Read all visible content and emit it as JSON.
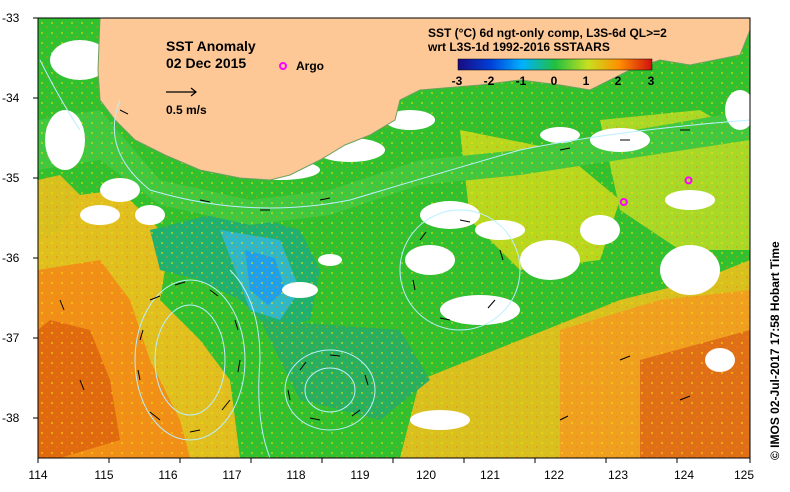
{
  "title": {
    "line1": "SST Anomaly",
    "line2": "02 Dec 2015"
  },
  "vector_scale_label": "0.5 m/s",
  "argo_label": "Argo",
  "colorbar": {
    "title_line1": "SST (°C) 6d ngt-only comp, L3S-6d QL>=2",
    "title_line2": "wrt L3S-1d 1992-2016 SSTAARS",
    "ticks": [
      "-3",
      "-2",
      "-1",
      "0",
      "1",
      "2",
      "3"
    ],
    "colors": [
      "#1a0a80",
      "#0040d8",
      "#00b0ff",
      "#20c040",
      "#c8e020",
      "#ff9000",
      "#d01010"
    ]
  },
  "x_ticks": [
    "114",
    "115",
    "116",
    "117",
    "118",
    "119",
    "120",
    "121",
    "122",
    "123",
    "124",
    "125"
  ],
  "y_ticks": [
    "-33",
    "-34",
    "-35",
    "-36",
    "-37",
    "-38"
  ],
  "footer_note": "© IMOS 02-Jul-2017 17:58 Hobart Time",
  "colors": {
    "land": "#fdc896",
    "argo_marker": "#ff00ff",
    "current_contours": "#b8f0ff"
  },
  "argo_floats": [
    {
      "lon": 123.05,
      "lat": -35.25
    },
    {
      "lon": 124.05,
      "lat": -34.98
    }
  ]
}
